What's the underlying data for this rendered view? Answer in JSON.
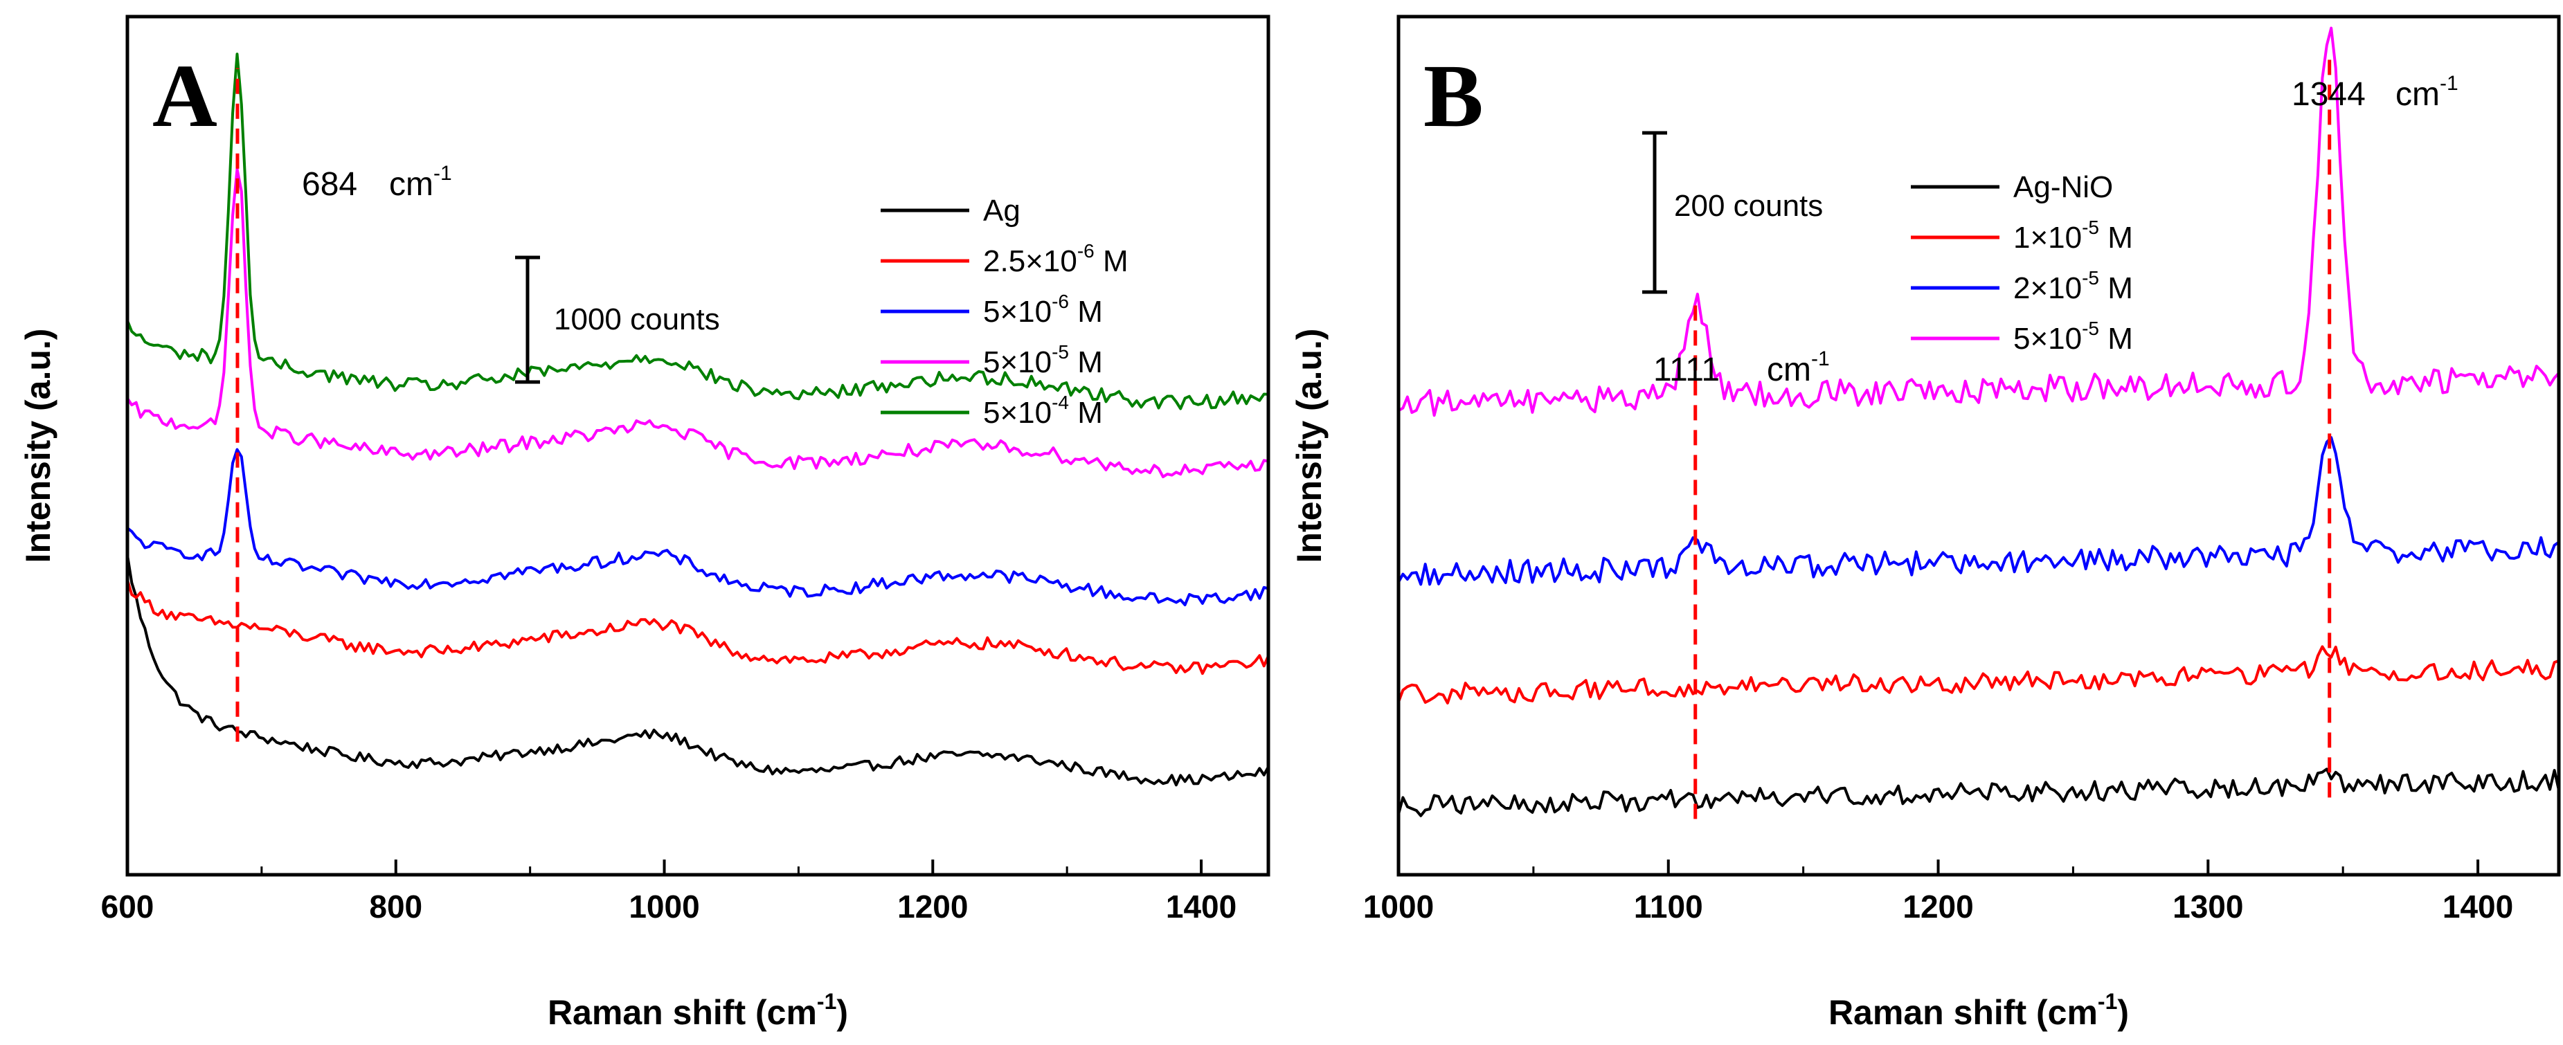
{
  "chart_data": [
    {
      "type": "line",
      "panel_label": "A",
      "xlabel": "Raman shift (cm",
      "xlabel_sup": "-1",
      "xlabel_end": ")",
      "ylabel": "Intensity (a.u.)",
      "xlim": [
        600,
        1450
      ],
      "xticks": [
        600,
        800,
        1000,
        1200,
        1400
      ],
      "scale_bar": {
        "label": "1000 counts",
        "value": 1000
      },
      "peak": {
        "label": "684",
        "unit": "cm",
        "unit_sup": "-1",
        "x": 684
      },
      "legend": [
        "Ag",
        "2.5×10",
        "5×10",
        "5×10",
        "5×10"
      ],
      "legend_sup": [
        "",
        "-6",
        "-6",
        "-5",
        "-4"
      ],
      "legend_unit": [
        "",
        " M",
        " M",
        " M",
        " M"
      ],
      "series": [
        {
          "name": "Ag",
          "color": "#000000",
          "baseline": 0.15,
          "peak_height": 0,
          "tail": 0.22,
          "noise": 0.006
        },
        {
          "name": "2.5×10-6 M",
          "color": "#ff0000",
          "baseline": 0.28,
          "peak_height": 0,
          "tail": 0.06,
          "noise": 0.007
        },
        {
          "name": "5×10-6 M",
          "color": "#0000ff",
          "baseline": 0.36,
          "peak_height": 0.13,
          "tail": 0.04,
          "noise": 0.007
        },
        {
          "name": "5×10-5 M",
          "color": "#ff00ff",
          "baseline": 0.51,
          "peak_height": 0.31,
          "tail": 0.04,
          "noise": 0.008
        },
        {
          "name": "5×10-4 M",
          "color": "#008000",
          "baseline": 0.59,
          "peak_height": 0.35,
          "tail": 0.05,
          "noise": 0.008
        }
      ]
    },
    {
      "type": "line",
      "panel_label": "B",
      "xlabel": "Raman shift (cm",
      "xlabel_sup": "-1",
      "xlabel_end": ")",
      "ylabel": "Intensity (a.u.)",
      "xlim": [
        1000,
        1430
      ],
      "xticks": [
        1000,
        1100,
        1200,
        1300,
        1400
      ],
      "scale_bar": {
        "label": "200 counts",
        "value": 200
      },
      "peaks": [
        {
          "label": "1111",
          "unit": "cm",
          "unit_sup": "-1",
          "x": 1111
        },
        {
          "label": "1344",
          "unit": "cm",
          "unit_sup": "-1",
          "x": 1344
        }
      ],
      "legend": [
        "Ag-NiO",
        "1×10",
        "2×10",
        "5×10"
      ],
      "legend_sup": [
        "",
        "-5",
        "-5",
        "-5"
      ],
      "legend_unit": [
        "",
        " M",
        " M",
        " M"
      ],
      "series": [
        {
          "name": "Ag-NiO",
          "color": "#000000",
          "baseline": 0.08,
          "p1": 0,
          "p2": 0.01,
          "noise": 0.012
        },
        {
          "name": "1×10-5 M",
          "color": "#ff0000",
          "baseline": 0.21,
          "p1": 0,
          "p2": 0.03,
          "noise": 0.012
        },
        {
          "name": "2×10-5 M",
          "color": "#0000ff",
          "baseline": 0.35,
          "p1": 0.03,
          "p2": 0.13,
          "noise": 0.014
        },
        {
          "name": "5×10-5 M",
          "color": "#ff00ff",
          "baseline": 0.55,
          "p1": 0.11,
          "p2": 0.42,
          "noise": 0.016
        }
      ]
    }
  ]
}
